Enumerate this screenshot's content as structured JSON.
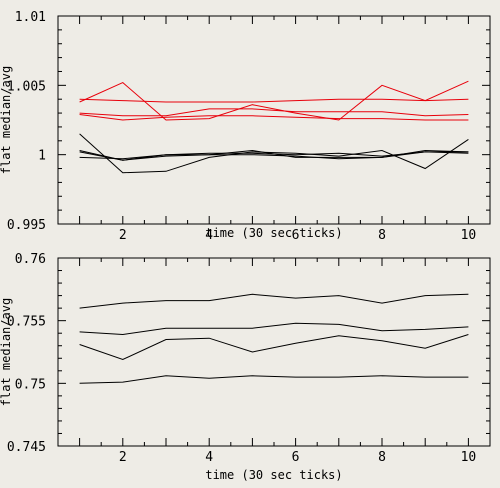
{
  "chart_data": [
    {
      "type": "line",
      "xlabel": "time (30 sec ticks)",
      "ylabel": "flat median/avg",
      "xlim": [
        0.5,
        10.5
      ],
      "ylim": [
        0.995,
        1.01
      ],
      "x_ticks": [
        2,
        4,
        6,
        8,
        10
      ],
      "y_ticks": [
        0.995,
        1,
        1.005,
        1.01
      ],
      "y_tick_labels": [
        "0.995",
        "1",
        "1.005",
        "1.01"
      ],
      "grid": false,
      "x": [
        1,
        2,
        3,
        4,
        5,
        6,
        7,
        8,
        9,
        10
      ],
      "series": [
        {
          "color": "#e8000b",
          "values": [
            1.0038,
            1.0052,
            1.0025,
            1.0026,
            1.0036,
            1.003,
            1.0025,
            1.005,
            1.0039,
            1.0053
          ]
        },
        {
          "color": "#e8000b",
          "values": [
            1.004,
            1.0039,
            1.0038,
            1.0038,
            1.0038,
            1.0039,
            1.004,
            1.004,
            1.0039,
            1.004
          ]
        },
        {
          "color": "#e8000b",
          "values": [
            1.003,
            1.0028,
            1.0028,
            1.0033,
            1.0033,
            1.0031,
            1.0031,
            1.0031,
            1.0028,
            1.0029
          ]
        },
        {
          "color": "#e8000b",
          "values": [
            1.0029,
            1.0025,
            1.0027,
            1.0028,
            1.0028,
            1.0027,
            1.0026,
            1.0026,
            1.0025,
            1.0025
          ]
        },
        {
          "color": "#000000",
          "values": [
            1.0015,
            0.9987,
            0.9988,
            0.9998,
            1.0002,
            1.0001,
            0.9999,
            1.0003,
            0.999,
            1.0011
          ]
        },
        {
          "color": "#000000",
          "values": [
            1.0003,
            0.9996,
            0.9999,
            1.0,
            1.0003,
            0.9998,
            0.9998,
            0.9998,
            1.0003,
            1.0002
          ]
        },
        {
          "color": "#000000",
          "values": [
            1.0002,
            0.9996,
            1.0,
            1.0001,
            1.0001,
            1.0,
            1.0001,
            0.9999,
            1.0002,
            1.0001
          ]
        },
        {
          "color": "#000000",
          "values": [
            0.9998,
            0.9997,
            1.0,
            1.0,
            1.0,
            0.9999,
            0.9997,
            0.9998,
            1.0002,
            1.0002
          ]
        }
      ]
    },
    {
      "type": "line",
      "xlabel": "time (30 sec ticks)",
      "ylabel": "flat median/avg",
      "xlim": [
        0.5,
        10.5
      ],
      "ylim": [
        0.745,
        0.76
      ],
      "x_ticks": [
        2,
        4,
        6,
        8,
        10
      ],
      "y_ticks": [
        0.745,
        0.75,
        0.755,
        0.76
      ],
      "y_tick_labels": [
        "0.745",
        "0.75",
        "0.755",
        "0.76"
      ],
      "grid": false,
      "x": [
        1,
        2,
        3,
        4,
        5,
        6,
        7,
        8,
        9,
        10
      ],
      "series": [
        {
          "color": "#000000",
          "values": [
            0.756,
            0.7564,
            0.7566,
            0.7566,
            0.7571,
            0.7568,
            0.757,
            0.7564,
            0.757,
            0.7571
          ]
        },
        {
          "color": "#000000",
          "values": [
            0.7541,
            0.7539,
            0.7544,
            0.7544,
            0.7544,
            0.7548,
            0.7547,
            0.7542,
            0.7543,
            0.7545
          ]
        },
        {
          "color": "#000000",
          "values": [
            0.7531,
            0.7519,
            0.7535,
            0.7536,
            0.7525,
            0.7532,
            0.7538,
            0.7534,
            0.7528,
            0.7539
          ]
        },
        {
          "color": "#000000",
          "values": [
            0.75,
            0.7501,
            0.7506,
            0.7504,
            0.7506,
            0.7505,
            0.7505,
            0.7506,
            0.7505,
            0.7505
          ]
        }
      ]
    }
  ]
}
